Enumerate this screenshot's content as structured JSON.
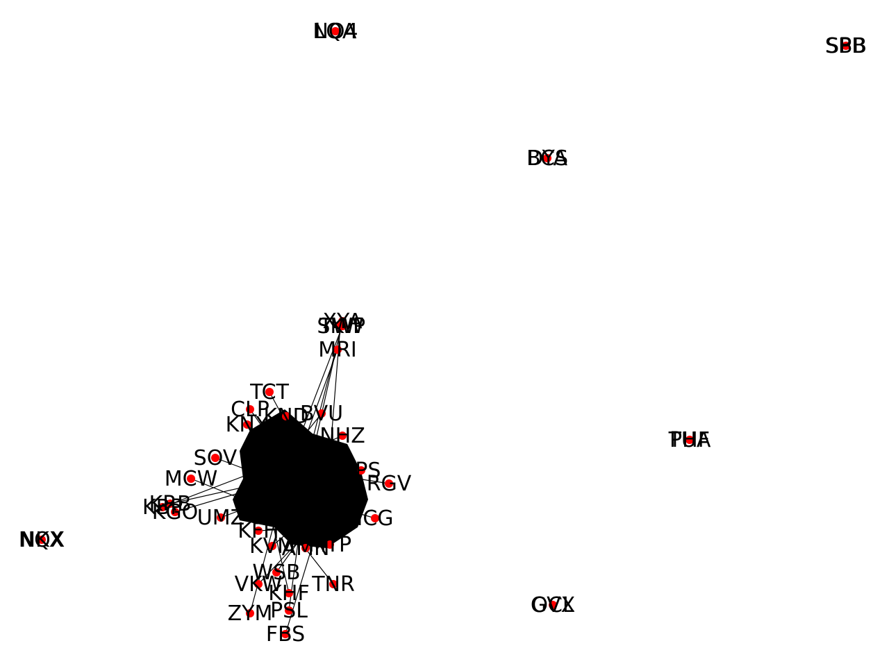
{
  "graph": {
    "node_color": "#ff0000",
    "edge_color": "#000000",
    "label_color": "#000000",
    "isolated_nodes": [
      {
        "id": "n1",
        "labels": [
          "LQA",
          "NO4"
        ]
      },
      {
        "id": "n2",
        "labels": [
          "SBB",
          "SPB"
        ]
      },
      {
        "id": "n3",
        "labels": [
          "BCS",
          "DYA"
        ]
      },
      {
        "id": "n4",
        "labels": [
          "TUA",
          "PHF"
        ]
      },
      {
        "id": "n5",
        "labels": [
          "NQX",
          "NKX"
        ]
      },
      {
        "id": "n6",
        "labels": [
          "OCL",
          "GVX"
        ]
      }
    ],
    "cluster_labels": [
      "XYA",
      "TWP",
      "SKW",
      "MRI",
      "TCT",
      "BVU",
      "CLP",
      "KND",
      "KNX",
      "NHZ",
      "SOV",
      "MCW",
      "KRB",
      "KGO",
      "KFH",
      "VKW",
      "UMZ",
      "KBP",
      "KVM",
      "TNR",
      "RGV",
      "ICG",
      "KPS",
      "WSB",
      "PSL",
      "ZYM",
      "FBS",
      "AMN",
      "MTP",
      "KHF"
    ]
  }
}
